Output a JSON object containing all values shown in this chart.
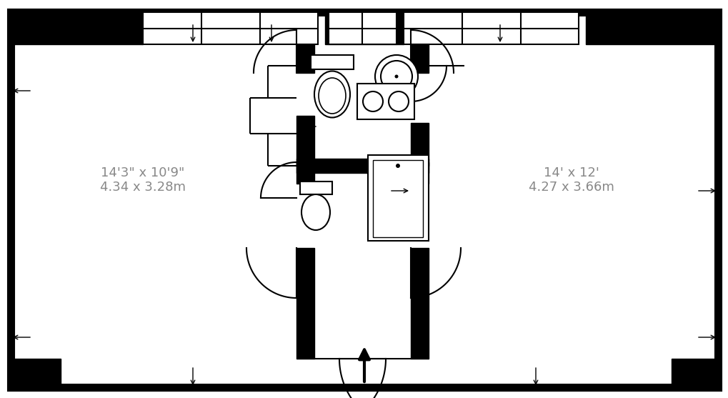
{
  "bg": "#ffffff",
  "black": "#000000",
  "label_color": "#888888",
  "room_left_line1": "14'3\" x 10'9\"",
  "room_left_line2": "4.34 x 3.28m",
  "room_right_line1": "14' x 12'",
  "room_right_line2": "4.27 x 3.66m",
  "label_fs": 13,
  "fig_w": 10.2,
  "fig_h": 5.57,
  "dpi": 100
}
